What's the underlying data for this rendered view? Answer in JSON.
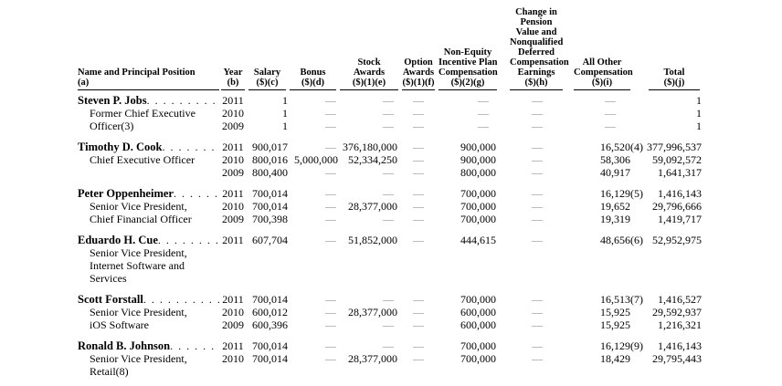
{
  "document": {
    "kind": "summary-compensation-table",
    "text_color": "#000000",
    "dash_color": "#8f8f8f",
    "dash": "—"
  },
  "table": {
    "columns": [
      {
        "key": "name",
        "header_lines": [
          "Name and Principal Position",
          "(a)"
        ]
      },
      {
        "key": "year",
        "header_lines": [
          "Year",
          "(b)"
        ]
      },
      {
        "key": "salary",
        "header_lines": [
          "Salary",
          "($)(c)"
        ]
      },
      {
        "key": "bonus",
        "header_lines": [
          "Bonus",
          "($)(d)"
        ]
      },
      {
        "key": "stock-awards",
        "header_lines": [
          "Stock",
          "Awards",
          "($)(1)(e)"
        ]
      },
      {
        "key": "option-awards",
        "header_lines": [
          "Option",
          "Awards",
          "($)(1)(f)"
        ]
      },
      {
        "key": "non-equity-incentive",
        "header_lines": [
          "Non-Equity",
          "Incentive Plan",
          "Compensation",
          "($)(2)(g)"
        ]
      },
      {
        "key": "pension-change",
        "header_lines": [
          "Change in",
          "Pension",
          "Value and",
          "Nonqualified",
          "Deferred",
          "Compensation",
          "Earnings",
          "($)(h)"
        ]
      },
      {
        "key": "all-other-comp",
        "header_lines": [
          "All Other",
          "Compensation",
          "($)(i)"
        ]
      },
      {
        "key": "total",
        "header_lines": [
          "Total",
          "($)(j)"
        ]
      }
    ],
    "groups": [
      {
        "rows": [
          {
            "name": "Steven P. Jobs",
            "year": "2011",
            "salary": "1",
            "bonus": "—",
            "stock": "—",
            "option": "—",
            "neq": "—",
            "pension": "—",
            "aoc": "—",
            "total": "1"
          },
          {
            "pos": "Former Chief Executive",
            "year": "2010",
            "salary": "1",
            "bonus": "—",
            "stock": "—",
            "option": "—",
            "neq": "—",
            "pension": "—",
            "aoc": "—",
            "total": "1"
          },
          {
            "pos": "Officer(3)",
            "year": "2009",
            "salary": "1",
            "bonus": "—",
            "stock": "—",
            "option": "—",
            "neq": "—",
            "pension": "—",
            "aoc": "—",
            "total": "1"
          }
        ]
      },
      {
        "rows": [
          {
            "name": "Timothy D. Cook",
            "year": "2011",
            "salary": "900,017",
            "bonus": "—",
            "stock": "376,180,000",
            "option": "—",
            "neq": "900,000",
            "pension": "—",
            "aoc": "16,520(4)",
            "total": "377,996,537"
          },
          {
            "pos": "Chief Executive Officer",
            "year": "2010",
            "salary": "800,016",
            "bonus": "5,000,000",
            "stock": "52,334,250",
            "option": "—",
            "neq": "900,000",
            "pension": "—",
            "aoc": "58,306",
            "total": "59,092,572"
          },
          {
            "pos": "",
            "year": "2009",
            "salary": "800,400",
            "bonus": "—",
            "stock": "—",
            "option": "—",
            "neq": "800,000",
            "pension": "—",
            "aoc": "40,917",
            "total": "1,641,317"
          }
        ]
      },
      {
        "rows": [
          {
            "name": "Peter Oppenheimer",
            "year": "2011",
            "salary": "700,014",
            "bonus": "—",
            "stock": "—",
            "option": "—",
            "neq": "700,000",
            "pension": "—",
            "aoc": "16,129(5)",
            "total": "1,416,143"
          },
          {
            "pos": "Senior Vice President,",
            "year": "2010",
            "salary": "700,014",
            "bonus": "—",
            "stock": "28,377,000",
            "option": "—",
            "neq": "700,000",
            "pension": "—",
            "aoc": "19,652",
            "total": "29,796,666"
          },
          {
            "pos": "Chief Financial Officer",
            "year": "2009",
            "salary": "700,398",
            "bonus": "—",
            "stock": "—",
            "option": "—",
            "neq": "700,000",
            "pension": "—",
            "aoc": "19,319",
            "total": "1,419,717"
          }
        ]
      },
      {
        "rows": [
          {
            "name": "Eduardo H. Cue",
            "year": "2011",
            "salary": "607,704",
            "bonus": "—",
            "stock": "51,852,000",
            "option": "—",
            "neq": "444,615",
            "pension": "—",
            "aoc": "48,656(6)",
            "total": "52,952,975"
          },
          {
            "pos": "Senior Vice President,"
          },
          {
            "pos": "Internet Software and"
          },
          {
            "pos": "Services"
          }
        ]
      },
      {
        "rows": [
          {
            "name": "Scott Forstall",
            "year": "2011",
            "salary": "700,014",
            "bonus": "—",
            "stock": "—",
            "option": "—",
            "neq": "700,000",
            "pension": "—",
            "aoc": "16,513(7)",
            "total": "1,416,527"
          },
          {
            "pos": "Senior Vice President,",
            "year": "2010",
            "salary": "600,012",
            "bonus": "—",
            "stock": "28,377,000",
            "option": "—",
            "neq": "600,000",
            "pension": "—",
            "aoc": "15,925",
            "total": "29,592,937"
          },
          {
            "pos": "iOS Software",
            "year": "2009",
            "salary": "600,396",
            "bonus": "—",
            "stock": "—",
            "option": "—",
            "neq": "600,000",
            "pension": "—",
            "aoc": "15,925",
            "total": "1,216,321"
          }
        ]
      },
      {
        "rows": [
          {
            "name": "Ronald B. Johnson",
            "year": "2011",
            "salary": "700,014",
            "bonus": "—",
            "stock": "—",
            "option": "—",
            "neq": "700,000",
            "pension": "—",
            "aoc": "16,129(9)",
            "total": "1,416,143"
          },
          {
            "pos": "Senior Vice President,",
            "year": "2010",
            "salary": "700,014",
            "bonus": "—",
            "stock": "28,377,000",
            "option": "—",
            "neq": "700,000",
            "pension": "—",
            "aoc": "18,429",
            "total": "29,795,443"
          },
          {
            "pos": "Retail(8)"
          }
        ]
      }
    ]
  }
}
